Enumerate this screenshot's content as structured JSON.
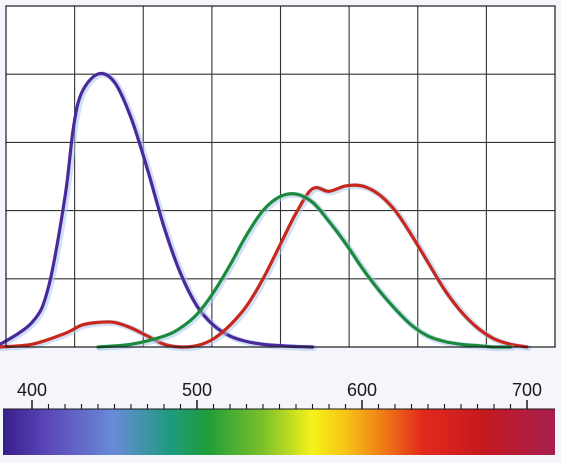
{
  "chart_data": {
    "type": "line",
    "title": "",
    "xlabel": "",
    "ylabel": "",
    "xlim": [
      400,
      700
    ],
    "ylim": [
      0,
      1
    ],
    "grid": true,
    "x_tick_labels": [
      "400",
      "500",
      "600",
      "700"
    ],
    "series": [
      {
        "color": "#4a2a9a",
        "x": [
          378,
          400,
          410,
          420,
          425,
          430,
          440,
          450,
          460,
          470,
          480,
          490,
          500,
          510,
          520,
          530,
          540,
          550,
          560,
          570
        ],
        "values": [
          0.0,
          0.09,
          0.22,
          0.55,
          0.8,
          0.93,
          1.0,
          0.97,
          0.84,
          0.65,
          0.44,
          0.27,
          0.15,
          0.08,
          0.04,
          0.02,
          0.01,
          0.005,
          0.002,
          0.0
        ]
      },
      {
        "color": "#c8281c",
        "x": [
          380,
          400,
          420,
          430,
          440,
          450,
          460,
          470,
          480,
          490,
          500,
          510,
          520,
          530,
          540,
          550,
          560,
          570,
          580,
          590,
          600,
          610,
          620,
          630,
          640,
          650,
          660,
          670,
          680,
          690,
          700
        ],
        "values": [
          0.0,
          0.01,
          0.05,
          0.08,
          0.09,
          0.09,
          0.07,
          0.04,
          0.01,
          0.0,
          0.005,
          0.03,
          0.08,
          0.15,
          0.25,
          0.37,
          0.49,
          0.58,
          0.57,
          0.59,
          0.59,
          0.56,
          0.5,
          0.41,
          0.31,
          0.21,
          0.13,
          0.07,
          0.03,
          0.01,
          0.0
        ]
      },
      {
        "color": "#1c8a3c",
        "x": [
          440,
          460,
          480,
          490,
          500,
          510,
          520,
          530,
          540,
          550,
          560,
          570,
          580,
          590,
          600,
          610,
          620,
          630,
          640,
          650,
          660,
          670,
          680,
          690
        ],
        "values": [
          0.0,
          0.01,
          0.04,
          0.07,
          0.12,
          0.2,
          0.3,
          0.41,
          0.5,
          0.55,
          0.56,
          0.53,
          0.46,
          0.38,
          0.29,
          0.21,
          0.14,
          0.08,
          0.04,
          0.02,
          0.01,
          0.005,
          0.0,
          0.0
        ]
      }
    ]
  }
}
